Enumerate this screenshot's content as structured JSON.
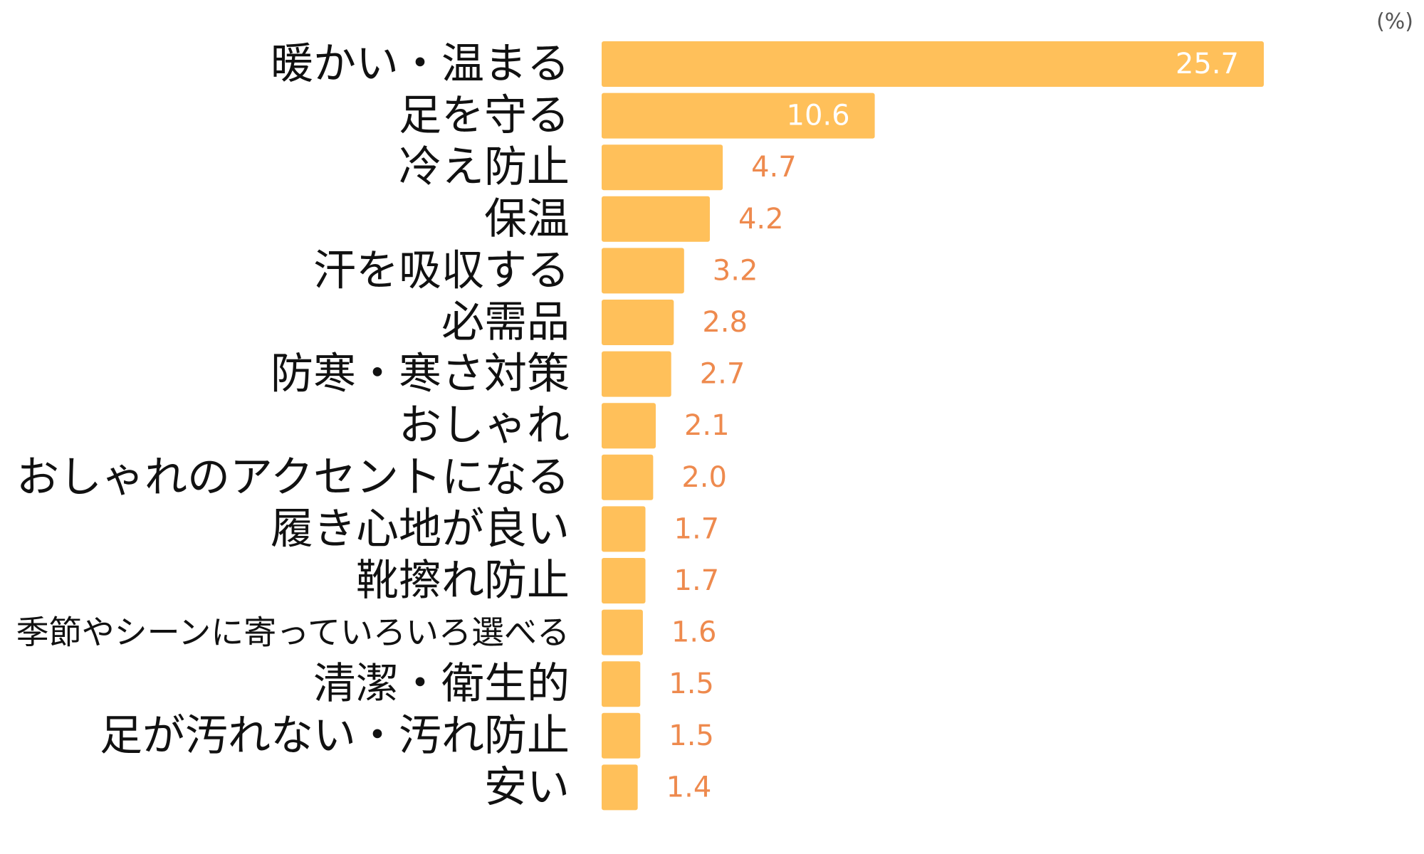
{
  "chart_data": {
    "type": "bar",
    "orientation": "horizontal",
    "unit": "(%)",
    "categories": [
      "暖かい・温まる",
      "足を守る",
      "冷え防止",
      "保温",
      "汗を吸収する",
      "必需品",
      "防寒・寒さ対策",
      "おしゃれ",
      "おしゃれのアクセントになる",
      "履き心地が良い",
      "靴擦れ防止",
      "季節やシーンに寄っていろいろ選べる",
      "清潔・衛生的",
      "足が汚れない・汚れ防止",
      "安い"
    ],
    "values": [
      25.7,
      10.6,
      4.7,
      4.2,
      3.2,
      2.8,
      2.7,
      2.1,
      2.0,
      1.7,
      1.7,
      1.6,
      1.5,
      1.5,
      1.4
    ],
    "value_labels": [
      "25.7",
      "10.6",
      "4.7",
      "4.2",
      "3.2",
      "2.8",
      "2.7",
      "2.1",
      "2.0",
      "1.7",
      "1.7",
      "1.6",
      "1.5",
      "1.5",
      "1.4"
    ],
    "xlim": [
      0,
      25.7
    ],
    "grid": false,
    "legend": "none",
    "colors": {
      "bar": "#FFC05A",
      "value_label_outside": "#EE8A4E",
      "value_label_inside": "#FFFFFF",
      "category_label": "#111111"
    }
  }
}
